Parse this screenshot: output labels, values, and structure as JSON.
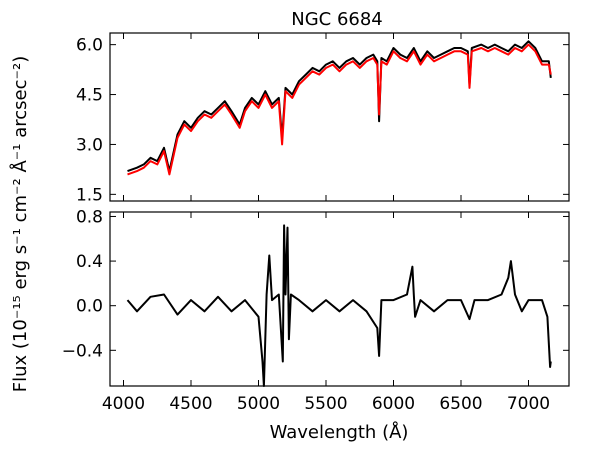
{
  "chart_data": [
    {
      "type": "line",
      "title": "NGC 6684",
      "xlim": [
        3900,
        7300
      ],
      "ylim": [
        1.3,
        6.35
      ],
      "yticks": [
        1.5,
        3.0,
        4.5,
        6.0
      ],
      "ytick_labels": [
        "1.5",
        "3.0",
        "4.5",
        "6.0"
      ],
      "xticks": [
        4000,
        4500,
        5000,
        5500,
        6000,
        6500,
        7000
      ],
      "series": [
        {
          "color": "#000000",
          "x": [
            4030,
            4100,
            4150,
            4200,
            4250,
            4300,
            4340,
            4400,
            4450,
            4500,
            4550,
            4600,
            4650,
            4700,
            4750,
            4800,
            4861,
            4900,
            4950,
            5000,
            5050,
            5100,
            5150,
            5175,
            5200,
            5250,
            5300,
            5350,
            5400,
            5450,
            5500,
            5550,
            5600,
            5650,
            5700,
            5750,
            5800,
            5850,
            5880,
            5893,
            5910,
            5950,
            6000,
            6050,
            6100,
            6150,
            6200,
            6250,
            6300,
            6350,
            6400,
            6450,
            6500,
            6550,
            6563,
            6580,
            6650,
            6700,
            6750,
            6800,
            6850,
            6900,
            6950,
            7000,
            7050,
            7100,
            7150,
            7165
          ],
          "y": [
            2.2,
            2.3,
            2.4,
            2.6,
            2.5,
            2.9,
            2.2,
            3.3,
            3.7,
            3.5,
            3.8,
            4.0,
            3.9,
            4.1,
            4.3,
            4.0,
            3.6,
            4.1,
            4.4,
            4.2,
            4.6,
            4.2,
            4.4,
            3.2,
            4.7,
            4.5,
            4.9,
            5.1,
            5.3,
            5.2,
            5.4,
            5.5,
            5.3,
            5.5,
            5.6,
            5.4,
            5.6,
            5.7,
            5.5,
            3.7,
            5.6,
            5.5,
            5.9,
            5.7,
            5.6,
            5.9,
            5.5,
            5.8,
            5.6,
            5.7,
            5.8,
            5.9,
            5.9,
            5.8,
            4.8,
            5.9,
            6.0,
            5.9,
            6.0,
            5.9,
            5.8,
            6.0,
            5.9,
            6.1,
            5.9,
            5.5,
            5.5,
            5.0
          ]
        },
        {
          "color": "#ff0000",
          "x": [
            4030,
            4100,
            4150,
            4200,
            4250,
            4300,
            4340,
            4400,
            4450,
            4500,
            4550,
            4600,
            4650,
            4700,
            4750,
            4800,
            4861,
            4900,
            4950,
            5000,
            5050,
            5100,
            5150,
            5175,
            5200,
            5250,
            5300,
            5350,
            5400,
            5450,
            5500,
            5550,
            5600,
            5650,
            5700,
            5750,
            5800,
            5850,
            5880,
            5893,
            5910,
            5950,
            6000,
            6050,
            6100,
            6150,
            6200,
            6250,
            6300,
            6350,
            6400,
            6450,
            6500,
            6550,
            6563,
            6580,
            6650,
            6700,
            6750,
            6800,
            6850,
            6900,
            6950,
            7000,
            7050,
            7100,
            7150,
            7165
          ],
          "y": [
            2.1,
            2.2,
            2.3,
            2.5,
            2.4,
            2.8,
            2.1,
            3.2,
            3.6,
            3.4,
            3.7,
            3.9,
            3.8,
            4.0,
            4.2,
            3.9,
            3.5,
            4.0,
            4.3,
            4.1,
            4.5,
            4.1,
            4.3,
            3.0,
            4.6,
            4.4,
            4.8,
            5.0,
            5.2,
            5.1,
            5.3,
            5.4,
            5.2,
            5.4,
            5.5,
            5.3,
            5.5,
            5.6,
            5.4,
            3.9,
            5.5,
            5.4,
            5.8,
            5.6,
            5.5,
            5.8,
            5.4,
            5.7,
            5.5,
            5.6,
            5.7,
            5.8,
            5.8,
            5.7,
            4.7,
            5.8,
            5.9,
            5.8,
            5.9,
            5.8,
            5.7,
            5.9,
            5.8,
            6.0,
            5.8,
            5.4,
            5.4,
            5.1
          ]
        }
      ]
    },
    {
      "type": "line",
      "xlabel": "Wavelength (Å)",
      "xlim": [
        3900,
        7300
      ],
      "ylim": [
        -0.72,
        0.84
      ],
      "yticks": [
        -0.4,
        0.0,
        0.4,
        0.8
      ],
      "ytick_labels": [
        "−0.4",
        "0.0",
        "0.4",
        "0.8"
      ],
      "xticks": [
        4000,
        4500,
        5000,
        5500,
        6000,
        6500,
        7000
      ],
      "xtick_labels": [
        "4000",
        "4500",
        "5000",
        "5500",
        "6000",
        "6500",
        "7000"
      ],
      "series": [
        {
          "color": "#000000",
          "x": [
            4030,
            4100,
            4200,
            4300,
            4400,
            4500,
            4600,
            4700,
            4800,
            4900,
            5000,
            5030,
            5040,
            5060,
            5080,
            5100,
            5150,
            5180,
            5190,
            5200,
            5215,
            5225,
            5240,
            5300,
            5400,
            5500,
            5600,
            5700,
            5800,
            5880,
            5893,
            5910,
            6000,
            6100,
            6140,
            6150,
            6160,
            6200,
            6300,
            6400,
            6500,
            6563,
            6600,
            6700,
            6800,
            6850,
            6870,
            6880,
            6900,
            6950,
            7000,
            7050,
            7100,
            7140,
            7160,
            7165
          ],
          "y": [
            0.05,
            -0.05,
            0.08,
            0.1,
            -0.08,
            0.05,
            -0.05,
            0.08,
            -0.05,
            0.05,
            -0.1,
            -0.5,
            -0.72,
            0.1,
            0.45,
            0.05,
            0.1,
            -0.5,
            0.72,
            0.1,
            0.7,
            -0.3,
            0.1,
            0.05,
            -0.05,
            0.05,
            -0.05,
            0.05,
            -0.05,
            -0.2,
            -0.45,
            0.05,
            0.05,
            0.1,
            0.35,
            0.1,
            -0.1,
            0.05,
            -0.05,
            0.05,
            0.05,
            -0.12,
            0.05,
            0.05,
            0.1,
            0.25,
            0.4,
            0.3,
            0.1,
            -0.05,
            0.05,
            0.05,
            0.05,
            -0.1,
            -0.55,
            -0.5
          ]
        }
      ]
    }
  ],
  "shared_ylabel": "Flux (10⁻¹⁵ erg s⁻¹ cm⁻² Å⁻¹ arcsec⁻²)"
}
